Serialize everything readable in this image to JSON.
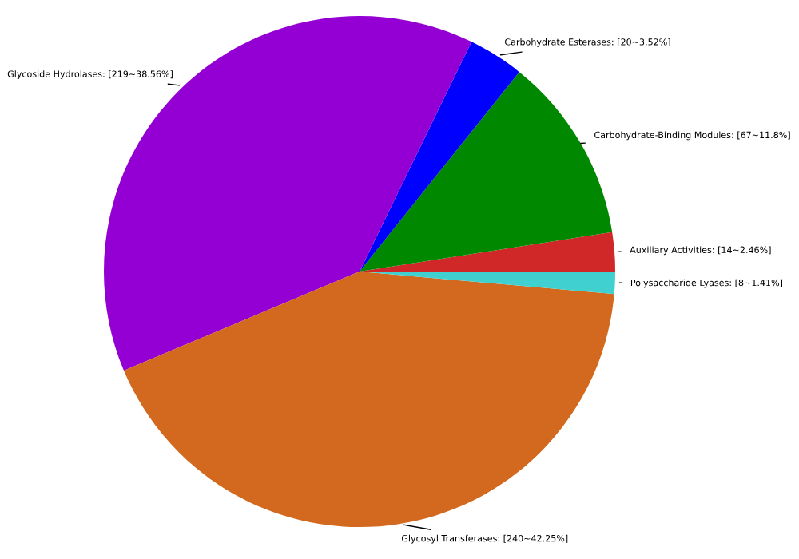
{
  "chart_data": {
    "type": "pie",
    "categories": [
      "Auxiliary Activities",
      "Carbohydrate-Binding Modules",
      "Carbohydrate Esterases",
      "Glycoside Hydrolases",
      "Glycosyl Transferases",
      "Polysaccharide Lyases"
    ],
    "values": [
      14,
      67,
      20,
      219,
      240,
      8
    ],
    "value_labels": [
      "[14~2.46%]",
      "[67~11.8%]",
      "[20~3.52%]",
      "[219~38.56%]",
      "[240~42.25%]",
      "[8~1.41%]"
    ],
    "colors": [
      "#d02828",
      "#008800",
      "#0000ff",
      "#9400d3",
      "#d2691e",
      "#40d0d0"
    ],
    "legend": false
  }
}
